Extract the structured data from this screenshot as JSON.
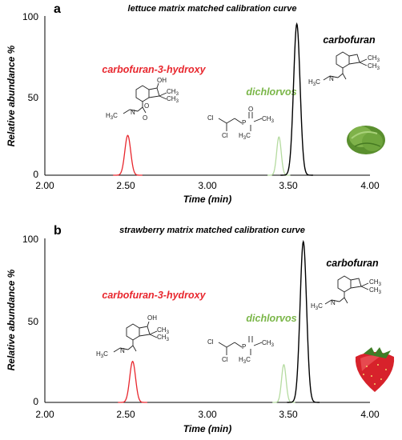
{
  "colors": {
    "carbofuran_3_hydroxy": "#e8262d",
    "dichlorvos": "#7ab648",
    "dichlorvos_peak": "#b5dba0",
    "carbofuran": "#000000",
    "axis": "#000000"
  },
  "chart_data": [
    {
      "type": "line",
      "panel": "a",
      "title": "lettuce matrix matched calibration curve",
      "xlabel": "Time (min)",
      "ylabel": "Relative abundance %",
      "xlim": [
        2.0,
        4.0
      ],
      "ylim": [
        0,
        100
      ],
      "x_ticks": [
        "2.00",
        "2.50",
        "3.00",
        "3.50",
        "4.00"
      ],
      "y_ticks": [
        "0",
        "50",
        "100"
      ],
      "grid": false,
      "series": [
        {
          "name": "carbofuran-3-hydroxy",
          "peak_time": 2.51,
          "peak_height": 25,
          "width": 0.018
        },
        {
          "name": "dichlorvos",
          "peak_time": 3.44,
          "peak_height": 24,
          "width": 0.014
        },
        {
          "name": "carbofuran",
          "peak_time": 3.55,
          "peak_height": 95,
          "width": 0.02
        }
      ],
      "chem_labels": {
        "oh": "OH",
        "ch3": "CH",
        "sub3": "3",
        "h3c": "H",
        "c": "C",
        "n": "N",
        "h": "H",
        "o": "O",
        "cl": "Cl",
        "p": "P"
      }
    },
    {
      "type": "line",
      "panel": "b",
      "title": "strawberry matrix matched calibration curve",
      "xlabel": "Time (min)",
      "ylabel": "Relative abundance %",
      "xlim": [
        2.0,
        4.0
      ],
      "ylim": [
        0,
        100
      ],
      "x_ticks": [
        "2.00",
        "2.50",
        "3.00",
        "3.50",
        "4.00"
      ],
      "y_ticks": [
        "0",
        "50",
        "100"
      ],
      "grid": false,
      "series": [
        {
          "name": "carbofuran-3-hydroxy",
          "peak_time": 2.54,
          "peak_height": 25,
          "width": 0.018
        },
        {
          "name": "dichlorvos",
          "peak_time": 3.47,
          "peak_height": 23,
          "width": 0.014
        },
        {
          "name": "carbofuran",
          "peak_time": 3.59,
          "peak_height": 98,
          "width": 0.02
        }
      ]
    }
  ]
}
